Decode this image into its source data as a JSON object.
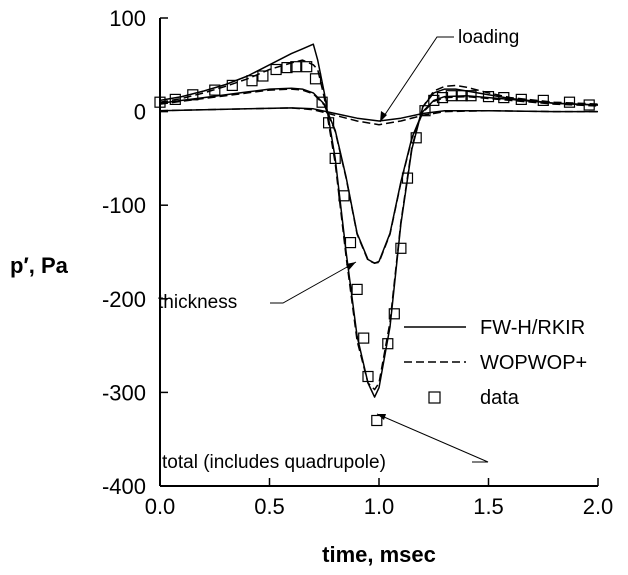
{
  "chart_data": {
    "type": "line",
    "xlabel": "time, msec",
    "ylabel": "p′, Pa",
    "xlim": [
      0.0,
      2.0
    ],
    "ylim": [
      -400,
      100
    ],
    "xticks": [
      "0.0",
      "0.5",
      "1.0",
      "1.5",
      "2.0"
    ],
    "yticks": [
      "100",
      "0",
      "-100",
      "-200",
      "-300",
      "-400"
    ],
    "xtick_values": [
      0.0,
      0.5,
      1.0,
      1.5,
      2.0
    ],
    "ytick_values": [
      100,
      0,
      -100,
      -200,
      -300,
      -400
    ],
    "grid": false,
    "legend_position": "right",
    "series": [
      {
        "name": "FW-H/RKIR",
        "style": "solid",
        "role": "total",
        "x": [
          0.0,
          0.1,
          0.2,
          0.3,
          0.4,
          0.5,
          0.6,
          0.65,
          0.7,
          0.72,
          0.75,
          0.8,
          0.85,
          0.9,
          0.95,
          0.98,
          1.0,
          1.05,
          1.1,
          1.15,
          1.2,
          1.25,
          1.3,
          1.35,
          1.4,
          1.5,
          1.6,
          1.8,
          2.0
        ],
        "y": [
          12,
          16,
          22,
          29,
          38,
          50,
          62,
          67,
          72,
          55,
          20,
          -50,
          -150,
          -240,
          -290,
          -305,
          -295,
          -230,
          -120,
          -40,
          5,
          20,
          24,
          24,
          22,
          18,
          14,
          9,
          7
        ]
      },
      {
        "name": "WOPWOP+",
        "style": "dashed",
        "role": "total",
        "x": [
          0.0,
          0.1,
          0.2,
          0.3,
          0.4,
          0.5,
          0.6,
          0.65,
          0.7,
          0.72,
          0.75,
          0.8,
          0.85,
          0.9,
          0.95,
          0.98,
          1.0,
          1.05,
          1.1,
          1.15,
          1.2,
          1.25,
          1.3,
          1.35,
          1.4,
          1.5,
          1.6,
          1.8,
          2.0
        ],
        "y": [
          10,
          14,
          20,
          27,
          35,
          45,
          52,
          55,
          50,
          45,
          15,
          -55,
          -155,
          -245,
          -290,
          -297,
          -290,
          -225,
          -118,
          -38,
          5,
          22,
          27,
          28,
          26,
          20,
          15,
          10,
          8
        ]
      },
      {
        "name": "",
        "style": "solid",
        "role": "thickness",
        "x": [
          0.0,
          0.1,
          0.2,
          0.3,
          0.4,
          0.5,
          0.6,
          0.65,
          0.7,
          0.75,
          0.8,
          0.85,
          0.9,
          0.95,
          0.98,
          1.0,
          1.05,
          1.1,
          1.15,
          1.2,
          1.25,
          1.3,
          1.4,
          1.5,
          1.6,
          1.8,
          2.0
        ],
        "y": [
          9,
          12,
          15,
          18,
          21,
          24,
          25,
          24,
          20,
          8,
          -20,
          -70,
          -130,
          -158,
          -162,
          -160,
          -130,
          -75,
          -28,
          0,
          12,
          16,
          17,
          15,
          13,
          9,
          7
        ]
      },
      {
        "name": "",
        "style": "dashed",
        "role": "thickness",
        "x": [
          0.0,
          0.1,
          0.2,
          0.3,
          0.4,
          0.5,
          0.6,
          0.65,
          0.7,
          0.75,
          0.8,
          0.85,
          0.9,
          0.95,
          0.98,
          1.0,
          1.05,
          1.1,
          1.15,
          1.2,
          1.25,
          1.3,
          1.4,
          1.5,
          1.6,
          1.8,
          2.0
        ],
        "y": [
          8,
          11,
          14,
          17,
          20,
          23,
          24,
          23,
          19,
          7,
          -21,
          -71,
          -131,
          -159,
          -162,
          -161,
          -131,
          -76,
          -29,
          -1,
          11,
          15,
          16,
          14,
          12,
          8,
          6
        ]
      },
      {
        "name": "",
        "style": "solid",
        "role": "loading",
        "x": [
          0.0,
          0.2,
          0.4,
          0.6,
          0.7,
          0.8,
          0.9,
          1.0,
          1.1,
          1.2,
          1.3,
          1.5,
          1.8,
          2.0
        ],
        "y": [
          1,
          2,
          3,
          4,
          3,
          -2,
          -7,
          -10,
          -7,
          -2,
          1,
          1,
          0,
          0
        ]
      },
      {
        "name": "",
        "style": "dashed",
        "role": "loading",
        "x": [
          0.0,
          0.2,
          0.4,
          0.6,
          0.7,
          0.8,
          0.9,
          1.0,
          1.1,
          1.2,
          1.3,
          1.5,
          1.8,
          2.0
        ],
        "y": [
          1,
          2,
          3,
          4,
          2,
          -4,
          -10,
          -14,
          -10,
          -4,
          0,
          1,
          0,
          0
        ]
      }
    ],
    "markers": {
      "name": "data",
      "x": [
        0.0,
        0.07,
        0.15,
        0.25,
        0.33,
        0.42,
        0.47,
        0.53,
        0.58,
        0.62,
        0.67,
        0.71,
        0.74,
        0.77,
        0.8,
        0.84,
        0.87,
        0.9,
        0.93,
        0.95,
        0.99,
        1.04,
        1.07,
        1.1,
        1.13,
        1.17,
        1.21,
        1.25,
        1.29,
        1.33,
        1.38,
        1.42,
        1.5,
        1.57,
        1.65,
        1.75,
        1.87,
        1.96
      ],
      "y": [
        10,
        13,
        18,
        23,
        28,
        33,
        38,
        45,
        47,
        48,
        48,
        35,
        10,
        -12,
        -50,
        -90,
        -140,
        -190,
        -242,
        -283,
        -330,
        -248,
        -216,
        -146,
        -71,
        -28,
        1,
        12,
        15,
        17,
        17,
        17,
        16,
        15,
        13,
        12,
        10,
        7
      ]
    },
    "annotations": [
      "loading",
      "thickness",
      "total (includes quadrupole)"
    ]
  },
  "legend": {
    "items": [
      {
        "label": "FW-H/RKIR",
        "symbol": "solid-line"
      },
      {
        "label": "WOPWOP+",
        "symbol": "dashed-line"
      },
      {
        "label": "data",
        "symbol": "open-square"
      }
    ]
  }
}
